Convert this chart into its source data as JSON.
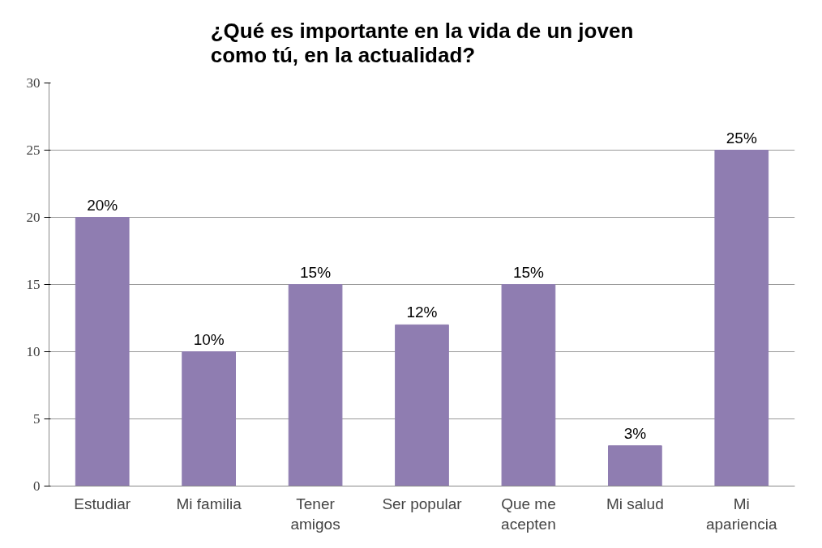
{
  "chart_data": {
    "type": "bar",
    "title": "¿Qué es importante en la vida de un joven\ncomo tú, en la actualidad?",
    "categories": [
      "Estudiar",
      "Mi familia",
      "Tener\namigos",
      "Ser popular",
      "Que me\nacepten",
      "Mi salud",
      "Mi\napariencia"
    ],
    "values": [
      20,
      10,
      15,
      12,
      15,
      3,
      25
    ],
    "value_labels": [
      "20%",
      "10%",
      "15%",
      "12%",
      "15%",
      "3%",
      "25%"
    ],
    "color": "#8f7db1",
    "ylim": [
      0,
      30
    ],
    "yticks": [
      0,
      5,
      10,
      15,
      20,
      25,
      30
    ],
    "grid": "y"
  }
}
